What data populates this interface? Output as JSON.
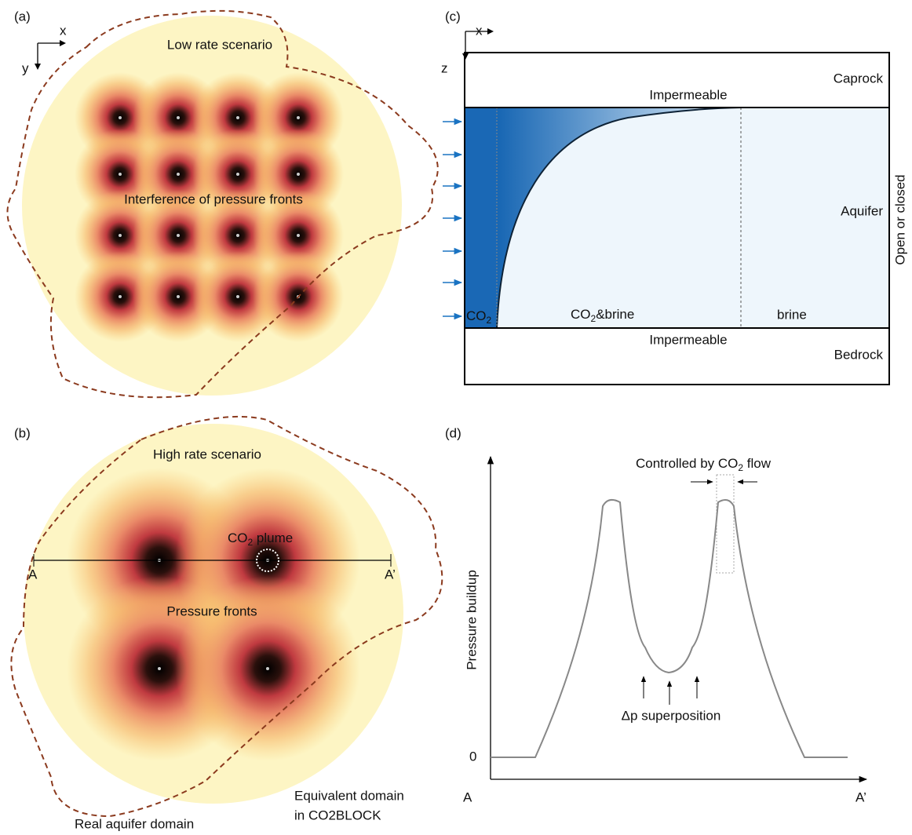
{
  "panels": {
    "a": {
      "label": "(a)",
      "axis_x": "x",
      "axis_y": "y",
      "title": "Low rate scenario",
      "note": "Interference of pressure fronts"
    },
    "b": {
      "label": "(b)",
      "title": "High rate scenario",
      "plume": [
        "CO",
        "2",
        " plume"
      ],
      "start": "A",
      "end": "A’",
      "note": "Pressure fronts",
      "equivalent": [
        "Equivalent domain",
        "in CO2BLOCK"
      ],
      "real": "Real aquifer domain"
    },
    "c": {
      "label": "(c)",
      "axis_x": "x",
      "axis_z": "z",
      "caprock": "Caprock",
      "top": "Impermeable",
      "aquifer": "Aquifer",
      "boundary": "Open or closed",
      "co2": [
        "CO",
        "2"
      ],
      "mix": [
        "CO",
        "2",
        "&brine"
      ],
      "brine": "brine",
      "bottom": "Impermeable",
      "bedrock": "Bedrock"
    },
    "d": {
      "label": "(d)",
      "control": [
        "Controlled by CO",
        "2",
        " flow"
      ],
      "y_label": "Pressure buildup",
      "zero": "0",
      "superposition": "Δp superposition",
      "start": "A",
      "end": "A’"
    }
  }
}
